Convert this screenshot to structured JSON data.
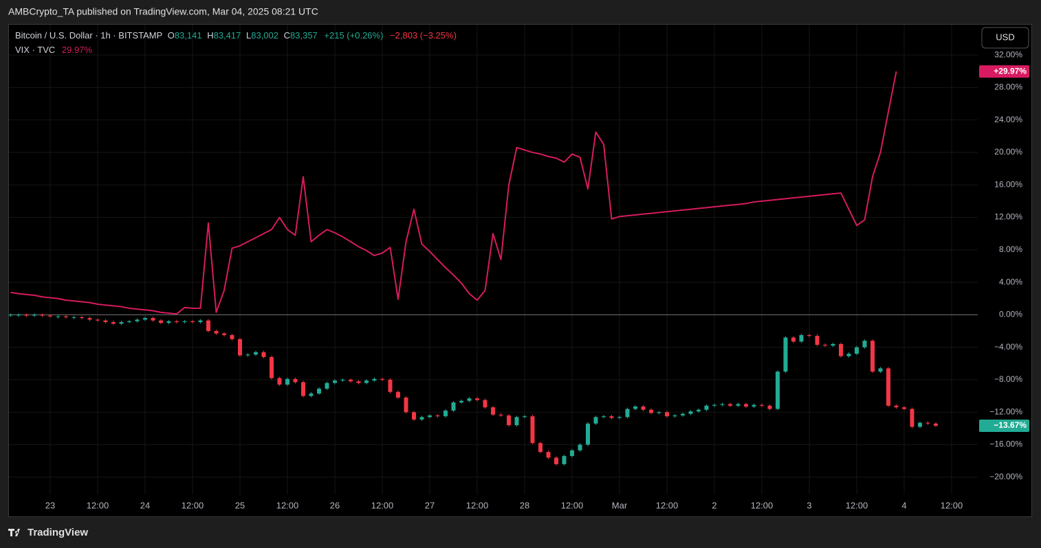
{
  "header": {
    "published": "AMBCrypto_TA published on TradingView.com, Mar 04, 2025 08:21 UTC",
    "currency": "USD",
    "brand": "TradingView"
  },
  "legend": {
    "symbol": "Bitcoin / U.S. Dollar · 1h · BITSTAMP",
    "o_label": "O",
    "open": "83,141",
    "h_label": "H",
    "high": "83,417",
    "l_label": "L",
    "low": "83,002",
    "c_label": "C",
    "close": "83,357",
    "change": "+215 (+0.26%)",
    "period_change": "−2,803 (−3.25%)",
    "vix_symbol": "VIX · TVC",
    "vix_value": "29.97%"
  },
  "chart_data": {
    "type": "combo",
    "grid": true,
    "categories": [
      null,
      null,
      null,
      null,
      null,
      "23",
      null,
      null,
      null,
      null,
      null,
      "12:00",
      null,
      null,
      null,
      null,
      null,
      "24",
      null,
      null,
      null,
      null,
      null,
      "12:00",
      null,
      null,
      null,
      null,
      null,
      "25",
      null,
      null,
      null,
      null,
      null,
      "12:00",
      null,
      null,
      null,
      null,
      null,
      "26",
      null,
      null,
      null,
      null,
      null,
      "12:00",
      null,
      null,
      null,
      null,
      null,
      "27",
      null,
      null,
      null,
      null,
      null,
      "12:00",
      null,
      null,
      null,
      null,
      null,
      "28",
      null,
      null,
      null,
      null,
      null,
      "12:00",
      null,
      null,
      null,
      null,
      null,
      "Mar",
      null,
      null,
      null,
      null,
      null,
      "12:00",
      null,
      null,
      null,
      null,
      null,
      "2",
      null,
      null,
      null,
      null,
      null,
      "12:00",
      null,
      null,
      null,
      null,
      null,
      "3",
      null,
      null,
      null,
      null,
      null,
      "12:00",
      null,
      null,
      null,
      null,
      null,
      "4",
      null,
      null,
      null,
      null,
      null,
      "12:00"
    ],
    "ylim": [
      -22.13,
      35.73
    ],
    "yticks": [
      {
        "value": -20,
        "label": "−20.00%"
      },
      {
        "value": -16,
        "label": "−16.00%"
      },
      {
        "value": -12,
        "label": "−12.00%"
      },
      {
        "value": -8,
        "label": "−8.00%"
      },
      {
        "value": -4,
        "label": "−4.00%"
      },
      {
        "value": 0,
        "label": "0.00%"
      },
      {
        "value": 4,
        "label": "4.00%"
      },
      {
        "value": 8,
        "label": "8.00%"
      },
      {
        "value": 12,
        "label": "12.00%"
      },
      {
        "value": 16,
        "label": "16.00%"
      },
      {
        "value": 20,
        "label": "20.00%"
      },
      {
        "value": 24,
        "label": "24.00%"
      },
      {
        "value": 28,
        "label": "28.00%"
      },
      {
        "value": 32,
        "label": "32.00%"
      }
    ],
    "series": [
      {
        "name": "VIX · TVC",
        "type": "line",
        "color": "#d81b60",
        "last_label": "+29.97%",
        "values": [
          2.76,
          2.6,
          2.5,
          2.4,
          2.2,
          2.1,
          2.0,
          1.8,
          1.7,
          1.6,
          1.5,
          1.3,
          1.2,
          1.1,
          1.0,
          0.8,
          0.7,
          0.6,
          0.5,
          0.3,
          0.2,
          0.1,
          0.9,
          0.8,
          0.8,
          11.3,
          0.3,
          3.0,
          8.2,
          8.5,
          9.0,
          9.5,
          10.0,
          10.5,
          12.0,
          10.5,
          9.8,
          17.0,
          9.0,
          9.8,
          10.5,
          10.1,
          9.6,
          9.0,
          8.4,
          7.9,
          7.3,
          7.6,
          8.3,
          1.9,
          9.0,
          13.0,
          8.7,
          7.8,
          6.8,
          5.8,
          4.9,
          3.9,
          2.6,
          1.8,
          3.0,
          10.0,
          6.8,
          16.0,
          20.6,
          20.3,
          20.0,
          19.8,
          19.5,
          19.3,
          18.8,
          19.8,
          19.4,
          15.5,
          22.5,
          21.0,
          11.8,
          12.1,
          12.2,
          12.3,
          12.4,
          12.5,
          12.6,
          12.7,
          12.8,
          12.9,
          13.0,
          13.1,
          13.2,
          13.3,
          13.4,
          13.5,
          13.6,
          13.7,
          13.9,
          14.0,
          14.1,
          14.2,
          14.3,
          14.4,
          14.5,
          14.6,
          14.7,
          14.8,
          14.9,
          15.0,
          13.0,
          11.0,
          11.7,
          17.0,
          20.0,
          25.0,
          29.97,
          null,
          null,
          null,
          null,
          null,
          null,
          null
        ]
      },
      {
        "name": "Bitcoin / U.S. Dollar",
        "type": "candlestick",
        "color": "#22ab94",
        "down_color": "#f23645",
        "last_label": "−13.67%",
        "values": [
          0.0,
          0.0,
          -0.1,
          0.0,
          -0.1,
          -0.2,
          -0.2,
          -0.3,
          -0.3,
          -0.4,
          -0.6,
          -0.7,
          -0.9,
          -1.1,
          -0.9,
          -0.8,
          -0.6,
          -0.4,
          -0.7,
          -1.0,
          -0.8,
          -0.9,
          -0.8,
          -0.9,
          -0.7,
          -2.0,
          -2.3,
          -2.5,
          -3.0,
          -5.0,
          -4.9,
          -4.6,
          -5.2,
          -7.8,
          -8.6,
          -7.9,
          -8.3,
          -10.0,
          -9.7,
          -9.1,
          -8.4,
          -8.1,
          -8.0,
          -8.2,
          -8.4,
          -8.1,
          -7.9,
          -8.0,
          -9.5,
          -10.2,
          -12.0,
          -12.9,
          -12.6,
          -12.4,
          -12.5,
          -11.8,
          -10.8,
          -10.6,
          -10.3,
          -10.5,
          -11.4,
          -12.3,
          -12.4,
          -13.6,
          -12.6,
          -12.5,
          -15.8,
          -16.9,
          -17.6,
          -18.4,
          -17.4,
          -16.7,
          -16.0,
          -13.4,
          -12.6,
          -12.5,
          -12.7,
          -12.6,
          -11.6,
          -11.3,
          -11.7,
          -12.1,
          -12.0,
          -12.5,
          -12.4,
          -12.2,
          -11.9,
          -11.7,
          -11.2,
          -11.1,
          -11.0,
          -11.2,
          -11.0,
          -11.3,
          -11.1,
          -11.2,
          -11.6,
          -7.0,
          -2.8,
          -3.3,
          -2.5,
          -2.6,
          -3.7,
          -3.8,
          -3.6,
          -5.1,
          -4.8,
          -4.0,
          -3.2,
          -7.0,
          -6.6,
          -11.2,
          -11.4,
          -11.6,
          -13.8,
          -13.3,
          -13.4,
          -13.67,
          null,
          null
        ]
      }
    ]
  }
}
